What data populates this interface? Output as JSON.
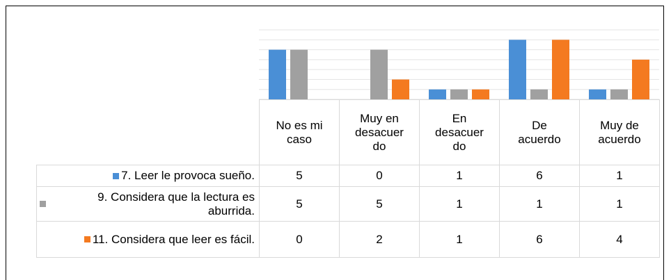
{
  "chart_data": {
    "type": "bar",
    "categories": [
      "No es mi caso",
      "Muy en desacuerdo",
      "En desacuerdo",
      "De acuerdo",
      "Muy de acuerdo"
    ],
    "series": [
      {
        "name": "7. Leer le provoca sueño.",
        "color": "#4a8fd6",
        "values": [
          5,
          0,
          1,
          6,
          1
        ]
      },
      {
        "name": "9. Considera que la lectura es aburrida.",
        "color": "#a0a0a0",
        "values": [
          5,
          5,
          1,
          1,
          1
        ]
      },
      {
        "name": "11. Considera que leer es fácil.",
        "color": "#f47a20",
        "values": [
          0,
          2,
          1,
          6,
          4
        ]
      }
    ],
    "ylim": [
      0,
      7
    ],
    "yticks": [
      0,
      1,
      2,
      3,
      4,
      5,
      6,
      7
    ],
    "grid": true,
    "data_table": true
  }
}
